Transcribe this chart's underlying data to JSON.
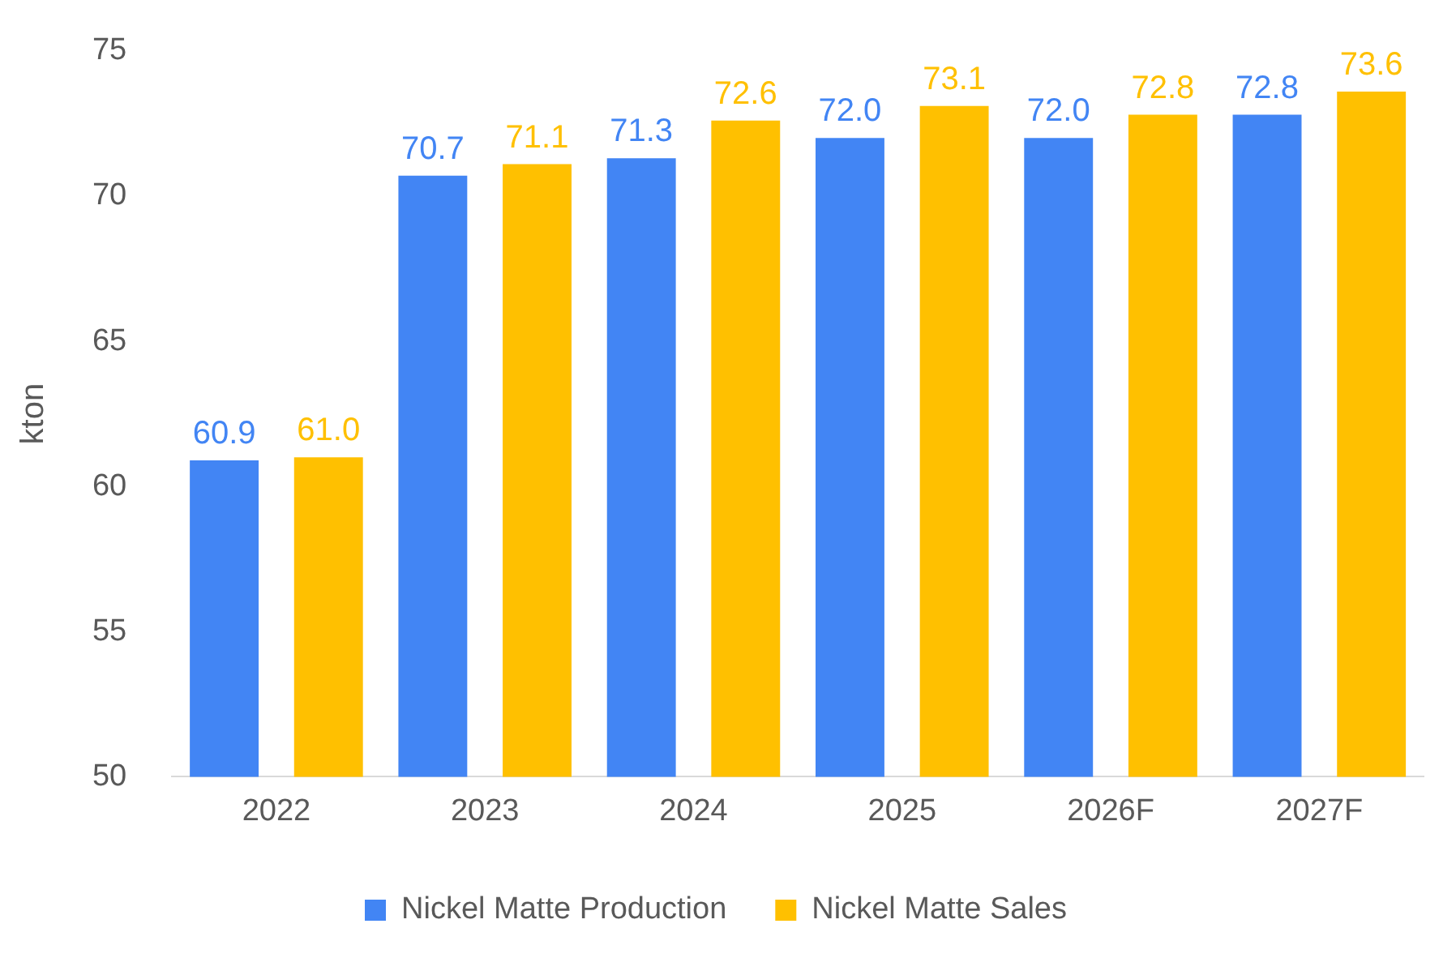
{
  "chart_data": {
    "type": "bar",
    "ylabel": "kton",
    "categories": [
      "2022",
      "2023",
      "2024",
      "2025",
      "2026F",
      "2027F"
    ],
    "series": [
      {
        "name": "Nickel Matte Production",
        "color": "#4285f4",
        "values": [
          60.9,
          70.7,
          71.3,
          72.0,
          72.0,
          72.8
        ],
        "value_labels": [
          "60.9",
          "70.7",
          "71.3",
          "72.0",
          "72.0",
          "72.8"
        ]
      },
      {
        "name": "Nickel Matte Sales",
        "color": "#ffc000",
        "values": [
          61.0,
          71.1,
          72.6,
          73.1,
          72.8,
          73.6
        ],
        "value_labels": [
          "61.0",
          "71.1",
          "72.6",
          "73.1",
          "72.8",
          "73.6"
        ]
      }
    ],
    "ylim": [
      50,
      75
    ],
    "yticks": [
      50,
      55,
      60,
      65,
      70,
      75
    ],
    "grid": false,
    "legend": "bottom"
  }
}
